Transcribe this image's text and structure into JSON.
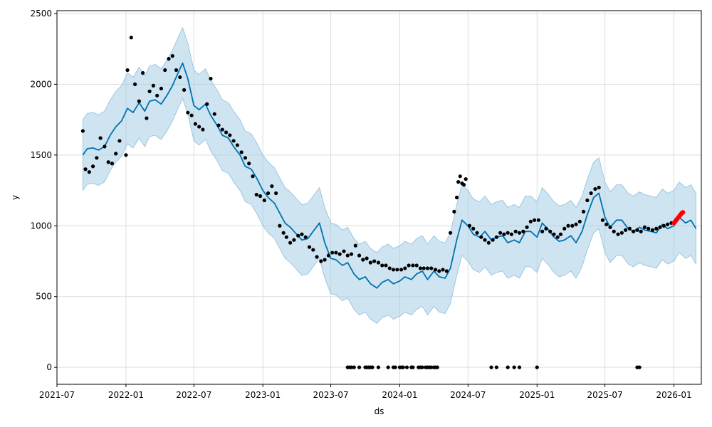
{
  "chart_data": {
    "type": "line",
    "title": "",
    "xlabel": "ds",
    "ylabel": "y",
    "xlim": [
      "2021-07-01",
      "2026-03-15"
    ],
    "ylim": [
      -120,
      2520
    ],
    "grid": true,
    "x_ticks": [
      "2021-07-01",
      "2022-01-01",
      "2022-07-01",
      "2023-01-01",
      "2023-07-01",
      "2024-01-01",
      "2024-07-01",
      "2025-01-01",
      "2025-07-01",
      "2026-01-01"
    ],
    "x_tick_labels": [
      "2021-07",
      "2022-01",
      "2022-07",
      "2023-01",
      "2023-07",
      "2024-01",
      "2024-07",
      "2025-01",
      "2025-07",
      "2026-01"
    ],
    "y_ticks": [
      0,
      500,
      1000,
      1500,
      2000,
      2500
    ],
    "y_tick_labels": [
      "0",
      "500",
      "1000",
      "1500",
      "2000",
      "2500"
    ],
    "colors": {
      "forecast": "#0072B2",
      "band": "#9ec9e3",
      "band_edge": "#8ebfdd",
      "observed": "#000000",
      "future": "#ff0000",
      "grid": "#dddddd",
      "frame": "#000000"
    },
    "forecast": {
      "x": [
        "2021-09-08",
        "2021-09-20",
        "2021-10-05",
        "2021-10-20",
        "2021-11-05",
        "2021-11-20",
        "2021-12-05",
        "2021-12-20",
        "2022-01-05",
        "2022-01-20",
        "2022-02-05",
        "2022-02-20",
        "2022-03-05",
        "2022-03-20",
        "2022-04-05",
        "2022-04-20",
        "2022-05-05",
        "2022-05-20",
        "2022-06-01",
        "2022-06-15",
        "2022-07-01",
        "2022-07-15",
        "2022-08-01",
        "2022-08-15",
        "2022-09-01",
        "2022-09-15",
        "2022-10-01",
        "2022-10-15",
        "2022-11-01",
        "2022-11-15",
        "2022-12-01",
        "2022-12-15",
        "2023-01-01",
        "2023-01-15",
        "2023-02-01",
        "2023-02-15",
        "2023-03-01",
        "2023-03-15",
        "2023-04-01",
        "2023-04-15",
        "2023-05-01",
        "2023-05-15",
        "2023-06-01",
        "2023-06-15",
        "2023-07-01",
        "2023-07-15",
        "2023-08-01",
        "2023-08-15",
        "2023-09-01",
        "2023-09-15",
        "2023-10-01",
        "2023-10-15",
        "2023-11-01",
        "2023-11-15",
        "2023-12-01",
        "2023-12-15",
        "2024-01-01",
        "2024-01-15",
        "2024-02-01",
        "2024-02-15",
        "2024-03-01",
        "2024-03-15",
        "2024-04-01",
        "2024-04-15",
        "2024-05-01",
        "2024-05-15",
        "2024-06-01",
        "2024-06-15",
        "2024-07-01",
        "2024-07-15",
        "2024-08-01",
        "2024-08-15",
        "2024-09-01",
        "2024-09-15",
        "2024-10-01",
        "2024-10-15",
        "2024-11-01",
        "2024-11-15",
        "2024-12-01",
        "2024-12-15",
        "2025-01-01",
        "2025-01-15",
        "2025-02-01",
        "2025-02-15",
        "2025-03-01",
        "2025-03-15",
        "2025-04-01",
        "2025-04-15",
        "2025-05-01",
        "2025-05-15",
        "2025-06-01",
        "2025-06-15",
        "2025-07-01",
        "2025-07-15",
        "2025-08-01",
        "2025-08-15",
        "2025-09-01",
        "2025-09-15",
        "2025-10-01",
        "2025-10-15",
        "2025-11-01",
        "2025-11-15",
        "2025-12-01",
        "2025-12-15",
        "2026-01-01",
        "2026-01-15",
        "2026-02-01",
        "2026-02-15",
        "2026-03-01"
      ],
      "yhat": [
        1500,
        1545,
        1550,
        1535,
        1560,
        1640,
        1700,
        1740,
        1830,
        1800,
        1870,
        1810,
        1880,
        1890,
        1860,
        1920,
        1990,
        2080,
        2150,
        2040,
        1850,
        1820,
        1860,
        1780,
        1710,
        1640,
        1620,
        1560,
        1500,
        1420,
        1400,
        1340,
        1250,
        1200,
        1160,
        1090,
        1020,
        990,
        940,
        900,
        910,
        960,
        1020,
        880,
        770,
        760,
        720,
        740,
        660,
        620,
        640,
        590,
        560,
        600,
        620,
        590,
        610,
        640,
        620,
        660,
        680,
        620,
        680,
        640,
        630,
        700,
        900,
        1040,
        1000,
        940,
        920,
        960,
        900,
        920,
        930,
        880,
        900,
        880,
        960,
        960,
        920,
        1020,
        970,
        920,
        890,
        900,
        930,
        880,
        960,
        1080,
        1200,
        1230,
        1060,
        990,
        1040,
        1040,
        980,
        960,
        990,
        970,
        960,
        950,
        1010,
        980,
        1000,
        1060,
        1020,
        1040,
        980
      ]
    },
    "band_width": 250,
    "observed": {
      "x": [
        "2021-09-08",
        "2021-09-15",
        "2021-09-25",
        "2021-10-05",
        "2021-10-15",
        "2021-10-25",
        "2021-11-05",
        "2021-11-15",
        "2021-11-25",
        "2021-12-05",
        "2021-12-15",
        "2022-01-01",
        "2022-01-05",
        "2022-01-15",
        "2022-01-25",
        "2022-02-05",
        "2022-02-15",
        "2022-02-25",
        "2022-03-05",
        "2022-03-15",
        "2022-03-25",
        "2022-04-05",
        "2022-04-15",
        "2022-04-25",
        "2022-05-05",
        "2022-05-15",
        "2022-05-25",
        "2022-06-05",
        "2022-06-15",
        "2022-06-25",
        "2022-07-05",
        "2022-07-15",
        "2022-07-25",
        "2022-08-05",
        "2022-08-15",
        "2022-08-25",
        "2022-09-05",
        "2022-09-15",
        "2022-09-25",
        "2022-10-05",
        "2022-10-15",
        "2022-10-25",
        "2022-11-05",
        "2022-11-15",
        "2022-11-25",
        "2022-12-05",
        "2022-12-15",
        "2022-12-25",
        "2023-01-05",
        "2023-01-15",
        "2023-01-25",
        "2023-02-05",
        "2023-02-15",
        "2023-02-25",
        "2023-03-05",
        "2023-03-15",
        "2023-03-25",
        "2023-04-05",
        "2023-04-15",
        "2023-04-25",
        "2023-05-05",
        "2023-05-15",
        "2023-05-25",
        "2023-06-05",
        "2023-06-15",
        "2023-06-25",
        "2023-07-05",
        "2023-07-15",
        "2023-07-25",
        "2023-08-05",
        "2023-08-15",
        "2023-08-25",
        "2023-09-05",
        "2023-09-15",
        "2023-09-25",
        "2023-10-05",
        "2023-10-15",
        "2023-10-25",
        "2023-11-05",
        "2023-11-15",
        "2023-11-25",
        "2023-12-05",
        "2023-12-15",
        "2023-12-25",
        "2024-01-05",
        "2024-01-15",
        "2024-01-25",
        "2024-02-05",
        "2024-02-15",
        "2024-02-25",
        "2024-03-05",
        "2024-03-15",
        "2024-03-25",
        "2024-04-05",
        "2024-04-15",
        "2024-04-25",
        "2024-05-05",
        "2024-05-15",
        "2024-05-25",
        "2024-06-01",
        "2024-06-05",
        "2024-06-10",
        "2024-06-15",
        "2024-06-20",
        "2024-06-25",
        "2024-07-05",
        "2024-07-15",
        "2024-07-25",
        "2024-08-05",
        "2024-08-15",
        "2024-08-25",
        "2024-09-05",
        "2024-09-15",
        "2024-09-25",
        "2024-10-05",
        "2024-10-15",
        "2024-10-25",
        "2024-11-05",
        "2024-11-15",
        "2024-11-25",
        "2024-12-05",
        "2024-12-15",
        "2024-12-25",
        "2025-01-05",
        "2025-01-15",
        "2025-01-25",
        "2025-02-05",
        "2025-02-15",
        "2025-02-25",
        "2025-03-05",
        "2025-03-15",
        "2025-03-25",
        "2025-04-05",
        "2025-04-15",
        "2025-04-25",
        "2025-05-05",
        "2025-05-15",
        "2025-05-25",
        "2025-06-05",
        "2025-06-15",
        "2025-06-25",
        "2025-07-05",
        "2025-07-15",
        "2025-07-25",
        "2025-08-05",
        "2025-08-15",
        "2025-08-25",
        "2025-09-05",
        "2025-09-15",
        "2025-09-25",
        "2025-10-05",
        "2025-10-15",
        "2025-10-25",
        "2025-11-05",
        "2025-11-15",
        "2025-11-25",
        "2025-12-05",
        "2025-12-15",
        "2025-12-25"
      ],
      "y": [
        1670,
        1400,
        1380,
        1420,
        1480,
        1620,
        1560,
        1450,
        1440,
        1510,
        1600,
        1500,
        2100,
        2330,
        2000,
        1880,
        2080,
        1760,
        1950,
        1990,
        1920,
        1970,
        2100,
        2180,
        2200,
        2100,
        2050,
        1960,
        1800,
        1780,
        1720,
        1700,
        1680,
        1860,
        2040,
        1790,
        1710,
        1680,
        1660,
        1640,
        1600,
        1570,
        1520,
        1480,
        1440,
        1350,
        1220,
        1210,
        1180,
        1230,
        1280,
        1230,
        1000,
        950,
        920,
        880,
        900,
        930,
        940,
        920,
        850,
        830,
        780,
        750,
        760,
        790,
        810,
        810,
        800,
        820,
        790,
        800,
        860,
        790,
        760,
        770,
        740,
        750,
        740,
        720,
        720,
        700,
        690,
        690,
        690,
        700,
        720,
        720,
        720,
        700,
        700,
        700,
        700,
        690,
        680,
        690,
        680,
        950,
        1100,
        1200,
        1310,
        1350,
        1300,
        1290,
        1330,
        1000,
        980,
        950,
        920,
        900,
        880,
        900,
        920,
        950,
        940,
        950,
        940,
        960,
        950,
        960,
        990,
        1030,
        1040,
        1040,
        960,
        980,
        960,
        940,
        920,
        940,
        980,
        1000,
        1000,
        1010,
        1030,
        1100,
        1180,
        1230,
        1260,
        1270,
        1040,
        1010,
        990,
        960,
        940,
        950,
        970,
        980,
        960,
        970,
        960,
        990,
        980,
        970,
        980,
        990,
        1000,
        1010,
        1020
      ]
    },
    "observed_zero": {
      "x": [
        "2023-08-15",
        "2023-08-20",
        "2023-08-25",
        "2023-09-01",
        "2023-09-15",
        "2023-10-01",
        "2023-10-05",
        "2023-10-10",
        "2023-10-15",
        "2023-10-20",
        "2023-11-05",
        "2023-12-01",
        "2023-12-15",
        "2023-12-20",
        "2024-01-01",
        "2024-01-05",
        "2024-01-10",
        "2024-01-20",
        "2024-02-01",
        "2024-02-05",
        "2024-02-20",
        "2024-02-25",
        "2024-03-01",
        "2024-03-10",
        "2024-03-15",
        "2024-03-20",
        "2024-03-25",
        "2024-04-01",
        "2024-04-05",
        "2024-04-10",
        "2024-09-01",
        "2024-09-15",
        "2024-10-15",
        "2024-11-01",
        "2024-11-15",
        "2025-01-01",
        "2025-09-25",
        "2025-10-01"
      ],
      "y": [
        0,
        0,
        0,
        0,
        0,
        0,
        0,
        0,
        0,
        0,
        0,
        0,
        0,
        0,
        0,
        0,
        0,
        0,
        0,
        0,
        0,
        0,
        0,
        0,
        0,
        0,
        0,
        0,
        0,
        0,
        0,
        0,
        0,
        0,
        0,
        0,
        0,
        0
      ]
    },
    "future_points": {
      "x": [
        "2026-01-01",
        "2026-01-04",
        "2026-01-07",
        "2026-01-10",
        "2026-01-13",
        "2026-01-16",
        "2026-01-19",
        "2026-01-22",
        "2026-01-25"
      ],
      "y": [
        1020,
        1030,
        1040,
        1050,
        1060,
        1070,
        1080,
        1090,
        1095
      ]
    }
  }
}
